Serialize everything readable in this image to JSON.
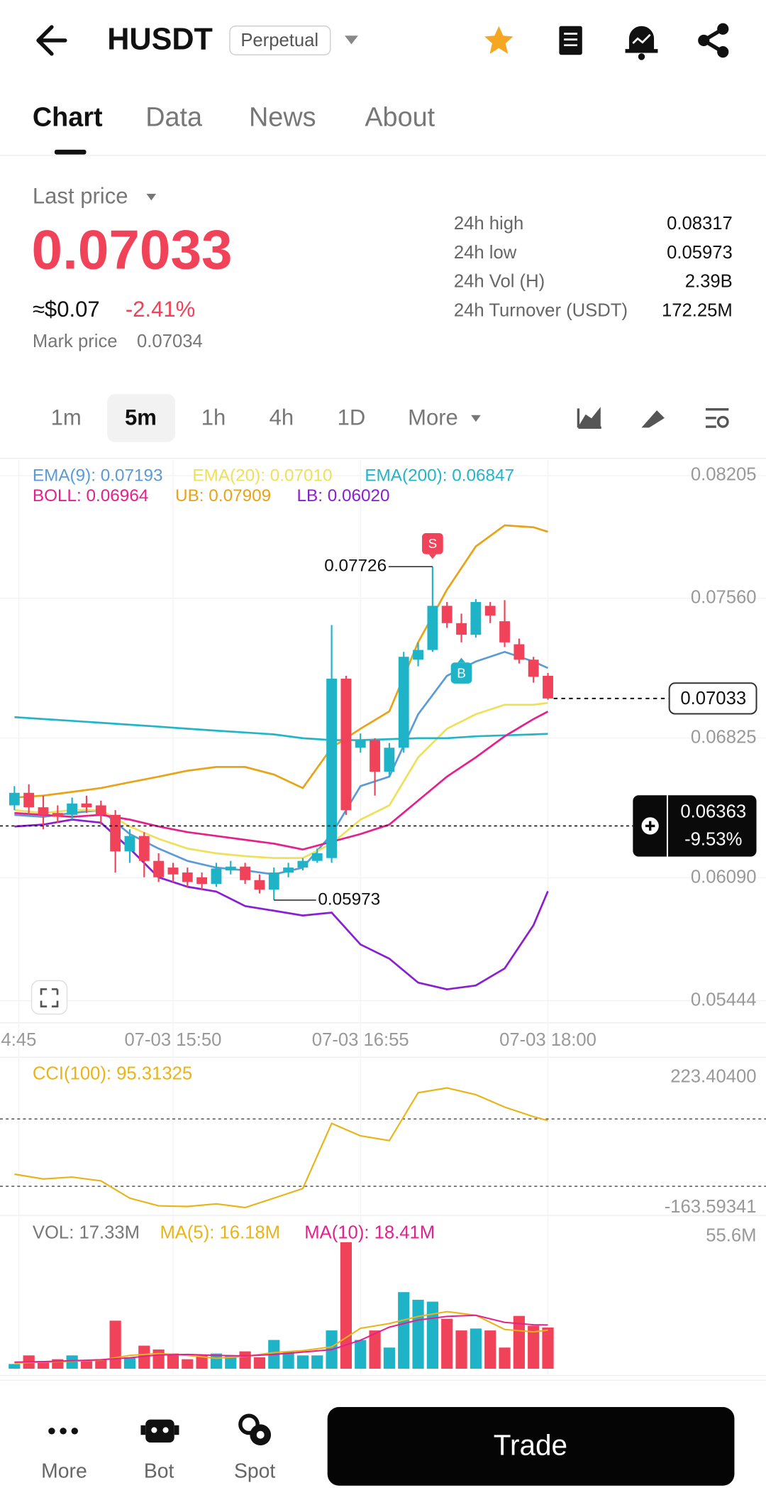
{
  "header": {
    "symbol": "HUSDT",
    "badge": "Perpetual"
  },
  "tabs": [
    "Chart",
    "Data",
    "News",
    "About"
  ],
  "ticker": {
    "label": "Last price",
    "price": "0.07033",
    "usd": "≈$0.07",
    "change": "-2.41%",
    "mark_label": "Mark price",
    "mark_price": "0.07034",
    "stats": [
      [
        "24h high",
        "0.08317"
      ],
      [
        "24h low",
        "0.05973"
      ],
      [
        "24h Vol (H)",
        "2.39B"
      ],
      [
        "24h Turnover (USDT)",
        "172.25M"
      ]
    ]
  },
  "intervals": [
    "1m",
    "5m",
    "1h",
    "4h",
    "1D",
    "More"
  ],
  "nav": [
    "More",
    "Bot",
    "Spot"
  ],
  "trade": "Trade",
  "chart_data": [
    {
      "type": "candlestick",
      "up_color": "#1fb3c8",
      "down_color": "#f0435a",
      "xlim": [
        -1,
        41.5
      ],
      "xticks": [
        {
          "value": 0.3,
          "label": "4:45"
        },
        {
          "value": 11,
          "label": "07-03 15:50"
        },
        {
          "value": 24,
          "label": "07-03 16:55"
        },
        {
          "value": 37,
          "label": "07-03 18:00"
        }
      ],
      "ylim": [
        0.05444,
        0.08205
      ],
      "yticks": [
        0.08205,
        {
          "value": 0.0756,
          "label": "0.07560"
        },
        0.06825,
        {
          "value": 0.0609,
          "label": "0.06090"
        },
        0.05444
      ],
      "grid": true,
      "open": [
        0.06471,
        0.06537,
        0.06461,
        0.06431,
        0.06421,
        0.06481,
        0.06471,
        0.06421,
        0.06229,
        0.0631,
        0.06179,
        0.06144,
        0.06118,
        0.06093,
        0.06058,
        0.06129,
        0.06149,
        0.06078,
        0.06028,
        0.06118,
        0.06144,
        0.06179,
        0.06194,
        0.07137,
        0.06774,
        0.06814,
        0.06648,
        0.06774,
        0.07237,
        0.07288,
        0.0752,
        0.07429,
        0.07368,
        0.0752,
        0.07439,
        0.07318,
        0.07237,
        0.07152
      ],
      "high": [
        0.06572,
        0.06582,
        0.06522,
        0.06471,
        0.06512,
        0.06522,
        0.06496,
        0.06446,
        0.06345,
        0.0633,
        0.06219,
        0.06169,
        0.06144,
        0.06118,
        0.06169,
        0.06179,
        0.06169,
        0.06108,
        0.06144,
        0.06169,
        0.06194,
        0.06244,
        0.07419,
        0.07152,
        0.06849,
        0.06824,
        0.06799,
        0.07278,
        0.07328,
        0.07726,
        0.0754,
        0.07479,
        0.07555,
        0.0754,
        0.0755,
        0.07348,
        0.07252,
        0.07167
      ],
      "low": [
        0.06446,
        0.06421,
        0.06345,
        0.0638,
        0.06396,
        0.06431,
        0.0637,
        0.06118,
        0.06169,
        0.06093,
        0.06068,
        0.06068,
        0.06043,
        0.06028,
        0.06043,
        0.06108,
        0.06058,
        0.06008,
        0.05973,
        0.06093,
        0.06129,
        0.06169,
        0.06169,
        0.06421,
        0.06748,
        0.06522,
        0.06622,
        0.06748,
        0.07202,
        0.07278,
        0.07404,
        0.07328,
        0.07353,
        0.07429,
        0.07303,
        0.07217,
        0.07116,
        0.07026
      ],
      "close": [
        0.06537,
        0.06461,
        0.06421,
        0.06411,
        0.06481,
        0.06461,
        0.06421,
        0.06229,
        0.0631,
        0.06179,
        0.06093,
        0.06108,
        0.06068,
        0.06058,
        0.06139,
        0.06149,
        0.06078,
        0.06028,
        0.06118,
        0.06144,
        0.06179,
        0.06219,
        0.07137,
        0.06446,
        0.06814,
        0.06648,
        0.06774,
        0.07252,
        0.07288,
        0.0752,
        0.07429,
        0.07368,
        0.0754,
        0.07469,
        0.07328,
        0.07237,
        0.07147,
        0.07033
      ],
      "series": [
        {
          "label": "EMA(9): 0.07193",
          "color": "#5b9bd5",
          "x": [
            0,
            2,
            4,
            6,
            8,
            10,
            12,
            14,
            16,
            18,
            20,
            22,
            24,
            26,
            28,
            30,
            32,
            34,
            36,
            37
          ],
          "values": [
            0.06421,
            0.06411,
            0.06431,
            0.06446,
            0.0632,
            0.06244,
            0.06179,
            0.06144,
            0.06129,
            0.06108,
            0.06144,
            0.0632,
            0.06572,
            0.06622,
            0.0695,
            0.07152,
            0.07227,
            0.07278,
            0.07227,
            0.07193
          ]
        },
        {
          "label": "EMA(20): 0.07010",
          "color": "#efe05a",
          "x": [
            0,
            2,
            4,
            6,
            8,
            10,
            12,
            14,
            16,
            18,
            20,
            22,
            24,
            26,
            28,
            30,
            32,
            34,
            36,
            37
          ],
          "values": [
            0.06446,
            0.06431,
            0.06446,
            0.06446,
            0.0636,
            0.06295,
            0.06244,
            0.06219,
            0.06204,
            0.06194,
            0.06194,
            0.0627,
            0.06396,
            0.06471,
            0.06723,
            0.06874,
            0.0695,
            0.07,
            0.07,
            0.0701
          ]
        },
        {
          "label": "EMA(200): 0.06847",
          "color": "#22b5c8",
          "x": [
            0,
            2,
            4,
            6,
            8,
            10,
            12,
            14,
            16,
            18,
            20,
            22,
            24,
            26,
            28,
            30,
            32,
            34,
            36,
            37
          ],
          "values": [
            0.06935,
            0.06925,
            0.06915,
            0.06905,
            0.06895,
            0.06885,
            0.06874,
            0.06864,
            0.06854,
            0.06844,
            0.06824,
            0.06814,
            0.06814,
            0.06819,
            0.06824,
            0.06824,
            0.06834,
            0.06839,
            0.06844,
            0.06847
          ]
        },
        {
          "label": "BOLL: 0.06964",
          "color": "#e5208c",
          "x": [
            0,
            2,
            4,
            6,
            8,
            10,
            12,
            14,
            16,
            18,
            20,
            22,
            24,
            26,
            28,
            30,
            32,
            34,
            36,
            37
          ],
          "values": [
            0.06431,
            0.06421,
            0.06411,
            0.06421,
            0.06396,
            0.0636,
            0.0633,
            0.0631,
            0.0629,
            0.0627,
            0.06239,
            0.0628,
            0.0632,
            0.0637,
            0.06496,
            0.06622,
            0.06723,
            0.06834,
            0.06925,
            0.06964
          ]
        },
        {
          "label": "UB: 0.07909",
          "color": "#e8a317",
          "x": [
            0,
            2,
            4,
            6,
            8,
            10,
            12,
            14,
            16,
            18,
            20,
            22,
            24,
            26,
            28,
            30,
            32,
            34,
            36,
            37
          ],
          "values": [
            0.06512,
            0.06522,
            0.06542,
            0.06562,
            0.06592,
            0.06622,
            0.06653,
            0.06673,
            0.06673,
            0.06633,
            0.06562,
            0.06774,
            0.06874,
            0.06965,
            0.07328,
            0.07605,
            0.07832,
            0.07943,
            0.07933,
            0.07909
          ]
        },
        {
          "label": "LB: 0.06020",
          "color": "#8a1fd1",
          "x": [
            0,
            2,
            4,
            6,
            8,
            10,
            12,
            14,
            16,
            18,
            20,
            22,
            24,
            26,
            28,
            30,
            32,
            34,
            36,
            37
          ],
          "values": [
            0.0636,
            0.0637,
            0.06396,
            0.0638,
            0.06244,
            0.06093,
            0.06043,
            0.06018,
            0.05942,
            0.05917,
            0.05892,
            0.05907,
            0.0574,
            0.05665,
            0.05539,
            0.05504,
            0.05524,
            0.05614,
            0.05841,
            0.0602
          ]
        }
      ],
      "high_note": {
        "value": 0.07726,
        "index": 29
      },
      "low_note": {
        "value": 0.05973,
        "index": 18
      },
      "signals": [
        {
          "label": "S",
          "index": 29,
          "color": "#f0435a"
        },
        {
          "label": "B",
          "index": 31,
          "color": "#1fb3c8"
        }
      ],
      "last_price": 0.07033,
      "position": {
        "price": 0.06363,
        "change": "-9.53%"
      }
    },
    {
      "type": "line",
      "label": "CCI(100): 95.31325",
      "color": "#e8b417",
      "ylim": [
        -163.59341,
        223.404
      ],
      "yticks": [
        {
          "value": 223.404,
          "label": "223.40400"
        },
        -163.59341
      ],
      "levels": [
        100,
        -100
      ],
      "x": [
        0,
        2,
        4,
        6,
        8,
        10,
        12,
        14,
        16,
        18,
        20,
        22,
        24,
        26,
        28,
        30,
        32,
        34,
        36,
        37
      ],
      "values": [
        -64.0,
        -78.3,
        -72.6,
        -84.0,
        -135.2,
        -158.0,
        -160.0,
        -152.3,
        -163.0,
        -135.2,
        -106.7,
        86.8,
        49.8,
        35.6,
        177.9,
        192.1,
        172.2,
        135.2,
        106.7,
        95.31325
      ]
    },
    {
      "type": "bar",
      "label": "VOL: 17.33M",
      "label_color": "#777777",
      "ylim": [
        0,
        55.6
      ],
      "yticks": [
        {
          "value": 55.6,
          "label": "55.6M"
        }
      ],
      "values": [
        2.0,
        5.6,
        3.2,
        4.0,
        5.6,
        3.2,
        4.0,
        20.2,
        4.8,
        9.7,
        8.1,
        6.4,
        4.0,
        5.6,
        6.4,
        5.6,
        7.3,
        4.8,
        12.1,
        7.3,
        5.6,
        5.6,
        16.1,
        53.2,
        12.1,
        16.1,
        8.9,
        32.2,
        29.0,
        28.2,
        21.0,
        16.1,
        16.9,
        16.1,
        8.9,
        22.2,
        18.1,
        17.33
      ],
      "series": [
        {
          "label": "MA(5): 16.18M",
          "color": "#e8b417",
          "x": [
            0,
            2,
            4,
            6,
            8,
            10,
            12,
            14,
            16,
            18,
            20,
            22,
            24,
            26,
            28,
            30,
            32,
            34,
            36,
            37
          ],
          "values": [
            2.4,
            2.8,
            3.2,
            3.6,
            5.6,
            6.4,
            5.6,
            4.4,
            5.2,
            6.8,
            7.6,
            9.2,
            17.0,
            19.0,
            22.0,
            24.0,
            22.5,
            16.5,
            15.5,
            16.18
          ]
        },
        {
          "label": "MA(10): 18.41M",
          "color": "#e5208c",
          "x": [
            0,
            2,
            4,
            6,
            8,
            10,
            12,
            14,
            16,
            18,
            20,
            22,
            24,
            26,
            28,
            30,
            32,
            34,
            36,
            37
          ],
          "values": [
            2.8,
            3.0,
            3.4,
            3.8,
            4.6,
            5.8,
            6.0,
            5.6,
            5.4,
            6.0,
            7.0,
            8.0,
            12.0,
            17.5,
            20.5,
            22.0,
            22.5,
            19.5,
            18.5,
            18.41
          ]
        }
      ]
    }
  ]
}
